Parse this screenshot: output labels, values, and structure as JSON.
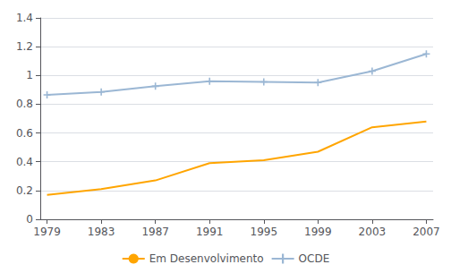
{
  "chart_data": {
    "type": "line",
    "x": [
      1979,
      1983,
      1987,
      1991,
      1995,
      1999,
      2003,
      2007
    ],
    "series": [
      {
        "name": "Em Desenvolvimento",
        "color": "#FFA500",
        "marker": "none",
        "values": [
          0.17,
          0.21,
          0.27,
          0.39,
          0.41,
          0.47,
          0.64,
          0.68
        ]
      },
      {
        "name": "OCDE",
        "color": "#9BB7D4",
        "marker": "plus",
        "values": [
          0.865,
          0.885,
          0.925,
          0.96,
          0.955,
          0.95,
          1.03,
          1.15
        ]
      }
    ],
    "xlim": [
      1978.5,
      2007.5
    ],
    "xticks": [
      1979,
      1983,
      1987,
      1991,
      1995,
      1999,
      2003,
      2007
    ],
    "ylim": [
      0,
      1.4
    ],
    "yticks": [
      0,
      0.2,
      0.4,
      0.6,
      0.8,
      1,
      1.2,
      1.4
    ],
    "grid": true,
    "legend": "bottom"
  }
}
